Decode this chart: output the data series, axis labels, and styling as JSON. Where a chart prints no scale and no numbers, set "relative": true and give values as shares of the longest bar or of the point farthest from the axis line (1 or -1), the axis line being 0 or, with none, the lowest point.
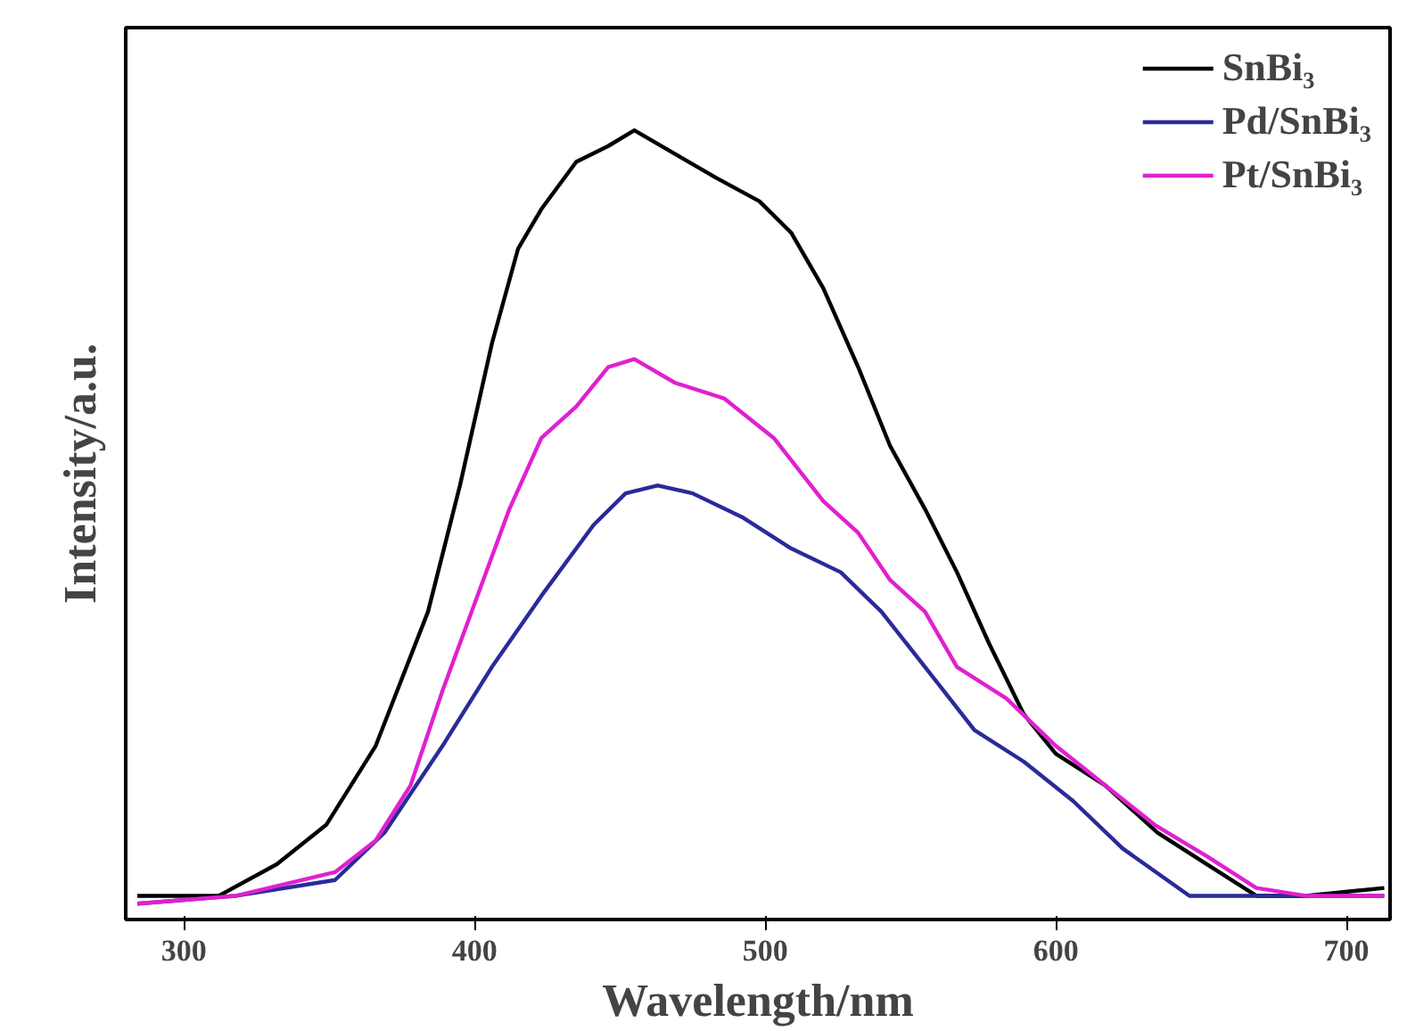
{
  "chart_data": {
    "type": "line",
    "xlabel": "Wavelength/nm",
    "ylabel": "Intensity/a.u.",
    "relative": true,
    "xlim": [
      280,
      715
    ],
    "xticks": [
      300,
      400,
      500,
      600,
      700
    ],
    "grid": false,
    "legend": "top right",
    "marker": "none",
    "line_style": "solid",
    "series": [
      {
        "name": "SnBi₃",
        "color": "#000000",
        "x": [
          284,
          312,
          332,
          349,
          366,
          384,
          395,
          406,
          415,
          423,
          435,
          446,
          455,
          469,
          483,
          498,
          509,
          520,
          532,
          543,
          555,
          566,
          577,
          589,
          600,
          617,
          635,
          652,
          669,
          686,
          713
        ],
        "values": [
          0.03,
          0.03,
          0.07,
          0.12,
          0.22,
          0.39,
          0.55,
          0.73,
          0.85,
          0.9,
          0.96,
          0.98,
          1.0,
          0.97,
          0.94,
          0.91,
          0.87,
          0.8,
          0.7,
          0.6,
          0.52,
          0.44,
          0.35,
          0.26,
          0.21,
          0.17,
          0.11,
          0.07,
          0.03,
          0.03,
          0.04
        ]
      },
      {
        "name": "Pd/SnBi₃",
        "color": "#2a2a9a",
        "x": [
          284,
          318,
          352,
          369,
          389,
          406,
          423,
          441,
          452,
          463,
          475,
          492,
          509,
          526,
          540,
          555,
          572,
          589,
          606,
          623,
          646,
          663,
          686,
          713
        ],
        "values": [
          0.02,
          0.03,
          0.05,
          0.11,
          0.22,
          0.32,
          0.41,
          0.5,
          0.54,
          0.55,
          0.54,
          0.51,
          0.47,
          0.44,
          0.39,
          0.32,
          0.24,
          0.2,
          0.15,
          0.09,
          0.03,
          0.03,
          0.03,
          0.03
        ]
      },
      {
        "name": "Pt/SnBi₃",
        "color": "#e020d0",
        "x": [
          284,
          318,
          352,
          366,
          378,
          389,
          401,
          412,
          423,
          435,
          446,
          455,
          469,
          486,
          503,
          520,
          532,
          543,
          555,
          566,
          583,
          600,
          617,
          634,
          652,
          669,
          686,
          713
        ],
        "values": [
          0.02,
          0.03,
          0.06,
          0.1,
          0.17,
          0.29,
          0.41,
          0.52,
          0.61,
          0.65,
          0.7,
          0.71,
          0.68,
          0.66,
          0.61,
          0.53,
          0.49,
          0.43,
          0.39,
          0.32,
          0.28,
          0.22,
          0.17,
          0.12,
          0.08,
          0.04,
          0.03,
          0.03
        ]
      }
    ]
  }
}
